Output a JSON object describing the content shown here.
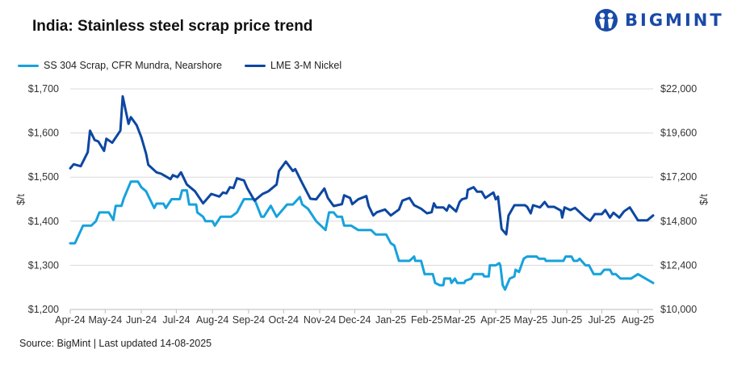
{
  "title": "India: Stainless steel scrap price trend",
  "logo": {
    "text": "BIGMINT",
    "color": "#1a4aa8"
  },
  "source": "Source: BigMint | Last updated 14-08-2025",
  "chart_data": {
    "type": "line",
    "title": "India: Stainless steel scrap price trend",
    "ylabel": "$/t",
    "y2label": "$/t",
    "ylim": [
      1200,
      1700
    ],
    "y2lim": [
      10000,
      22000
    ],
    "yticks": [
      "$1,200",
      "$1,300",
      "$1,400",
      "$1,500",
      "$1,600",
      "$1,700"
    ],
    "y2ticks": [
      "$10,000",
      "$12,400",
      "$14,800",
      "$17,200",
      "$19,600",
      "$22,000"
    ],
    "xticks": [
      "Apr-24",
      "May-24",
      "Jun-24",
      "Jul-24",
      "Aug-24",
      "Sep-24",
      "Oct-24",
      "Nov-24",
      "Dec-24",
      "Jan-25",
      "Feb-25",
      "Mar-25",
      "Apr-25",
      "May-25",
      "Jun-25",
      "Jul-25",
      "Aug-25"
    ],
    "xlim": [
      "2024-04-01",
      "2025-08-14"
    ],
    "grid": true,
    "legend_position": "top-left",
    "series": [
      {
        "name": "SS 304 Scrap, CFR Mundra, Nearshore",
        "axis": "left",
        "color": "#17a2dc",
        "points": [
          [
            "2024-04-01",
            1350
          ],
          [
            "2024-04-05",
            1350
          ],
          [
            "2024-04-12",
            1390
          ],
          [
            "2024-04-19",
            1390
          ],
          [
            "2024-04-23",
            1400
          ],
          [
            "2024-04-26",
            1420
          ],
          [
            "2024-05-04",
            1420
          ],
          [
            "2024-05-08",
            1403
          ],
          [
            "2024-05-10",
            1435
          ],
          [
            "2024-05-15",
            1435
          ],
          [
            "2024-05-17",
            1452
          ],
          [
            "2024-05-23",
            1490
          ],
          [
            "2024-05-29",
            1490
          ],
          [
            "2024-06-01",
            1477
          ],
          [
            "2024-06-05",
            1468
          ],
          [
            "2024-06-12",
            1430
          ],
          [
            "2024-06-14",
            1440
          ],
          [
            "2024-06-20",
            1440
          ],
          [
            "2024-06-22",
            1430
          ],
          [
            "2024-06-27",
            1450
          ],
          [
            "2024-07-04",
            1450
          ],
          [
            "2024-07-06",
            1470
          ],
          [
            "2024-07-10",
            1470
          ],
          [
            "2024-07-12",
            1438
          ],
          [
            "2024-07-18",
            1438
          ],
          [
            "2024-07-19",
            1420
          ],
          [
            "2024-07-24",
            1410
          ],
          [
            "2024-07-26",
            1400
          ],
          [
            "2024-08-01",
            1400
          ],
          [
            "2024-08-03",
            1390
          ],
          [
            "2024-08-08",
            1410
          ],
          [
            "2024-08-17",
            1410
          ],
          [
            "2024-08-22",
            1420
          ],
          [
            "2024-08-28",
            1450
          ],
          [
            "2024-09-06",
            1450
          ],
          [
            "2024-09-12",
            1410
          ],
          [
            "2024-09-14",
            1410
          ],
          [
            "2024-09-20",
            1435
          ],
          [
            "2024-09-25",
            1410
          ],
          [
            "2024-10-04",
            1438
          ],
          [
            "2024-10-09",
            1438
          ],
          [
            "2024-10-15",
            1455
          ],
          [
            "2024-10-17",
            1438
          ],
          [
            "2024-10-22",
            1428
          ],
          [
            "2024-10-29",
            1400
          ],
          [
            "2024-11-06",
            1380
          ],
          [
            "2024-11-09",
            1420
          ],
          [
            "2024-11-13",
            1420
          ],
          [
            "2024-11-16",
            1410
          ],
          [
            "2024-11-20",
            1410
          ],
          [
            "2024-11-22",
            1390
          ],
          [
            "2024-11-28",
            1390
          ],
          [
            "2024-12-04",
            1380
          ],
          [
            "2024-12-15",
            1380
          ],
          [
            "2024-12-19",
            1370
          ],
          [
            "2024-12-28",
            1370
          ],
          [
            "2025-01-01",
            1350
          ],
          [
            "2025-01-04",
            1345
          ],
          [
            "2025-01-08",
            1310
          ],
          [
            "2025-01-17",
            1310
          ],
          [
            "2025-01-21",
            1320
          ],
          [
            "2025-01-22",
            1310
          ],
          [
            "2025-01-27",
            1310
          ],
          [
            "2025-01-30",
            1280
          ],
          [
            "2025-02-06",
            1280
          ],
          [
            "2025-02-08",
            1260
          ],
          [
            "2025-02-12",
            1255
          ],
          [
            "2025-02-15",
            1255
          ],
          [
            "2025-02-16",
            1270
          ],
          [
            "2025-02-21",
            1270
          ],
          [
            "2025-02-22",
            1260
          ],
          [
            "2025-02-25",
            1270
          ],
          [
            "2025-02-27",
            1260
          ],
          [
            "2025-03-05",
            1260
          ],
          [
            "2025-03-06",
            1265
          ],
          [
            "2025-03-11",
            1270
          ],
          [
            "2025-03-13",
            1280
          ],
          [
            "2025-03-21",
            1280
          ],
          [
            "2025-03-22",
            1275
          ],
          [
            "2025-03-26",
            1275
          ],
          [
            "2025-03-27",
            1300
          ],
          [
            "2025-04-01",
            1300
          ],
          [
            "2025-04-04",
            1305
          ],
          [
            "2025-04-05",
            1300
          ],
          [
            "2025-04-07",
            1255
          ],
          [
            "2025-04-09",
            1245
          ],
          [
            "2025-04-13",
            1270
          ],
          [
            "2025-04-17",
            1275
          ],
          [
            "2025-04-18",
            1290
          ],
          [
            "2025-04-21",
            1285
          ],
          [
            "2025-04-25",
            1315
          ],
          [
            "2025-04-28",
            1320
          ],
          [
            "2025-05-06",
            1320
          ],
          [
            "2025-05-08",
            1315
          ],
          [
            "2025-05-13",
            1315
          ],
          [
            "2025-05-14",
            1310
          ],
          [
            "2025-05-29",
            1310
          ],
          [
            "2025-05-31",
            1320
          ],
          [
            "2025-06-05",
            1320
          ],
          [
            "2025-06-07",
            1310
          ],
          [
            "2025-06-10",
            1310
          ],
          [
            "2025-06-12",
            1315
          ],
          [
            "2025-06-17",
            1300
          ],
          [
            "2025-06-20",
            1300
          ],
          [
            "2025-06-24",
            1280
          ],
          [
            "2025-06-30",
            1280
          ],
          [
            "2025-07-03",
            1290
          ],
          [
            "2025-07-08",
            1290
          ],
          [
            "2025-07-10",
            1280
          ],
          [
            "2025-07-13",
            1280
          ],
          [
            "2025-07-17",
            1270
          ],
          [
            "2025-07-26",
            1270
          ],
          [
            "2025-08-01",
            1280
          ],
          [
            "2025-08-14",
            1260
          ]
        ]
      },
      {
        "name": "LME 3-M Nickel",
        "axis": "right",
        "color": "#0d47a1",
        "points": [
          [
            "2024-04-01",
            17680
          ],
          [
            "2024-04-04",
            17900
          ],
          [
            "2024-04-10",
            17795
          ],
          [
            "2024-04-16",
            18557
          ],
          [
            "2024-04-18",
            19729
          ],
          [
            "2024-04-22",
            19216
          ],
          [
            "2024-04-25",
            19143
          ],
          [
            "2024-04-30",
            18630
          ],
          [
            "2024-05-02",
            19290
          ],
          [
            "2024-05-07",
            19070
          ],
          [
            "2024-05-14",
            19729
          ],
          [
            "2024-05-16",
            21590
          ],
          [
            "2024-05-21",
            20095
          ],
          [
            "2024-05-23",
            20461
          ],
          [
            "2024-05-28",
            20022
          ],
          [
            "2024-06-01",
            19363
          ],
          [
            "2024-06-05",
            18483
          ],
          [
            "2024-06-07",
            17868
          ],
          [
            "2024-06-14",
            17458
          ],
          [
            "2024-06-18",
            17385
          ],
          [
            "2024-06-22",
            17238
          ],
          [
            "2024-06-26",
            17092
          ],
          [
            "2024-06-28",
            17311
          ],
          [
            "2024-07-02",
            17194
          ],
          [
            "2024-07-05",
            17458
          ],
          [
            "2024-07-10",
            16798
          ],
          [
            "2024-07-17",
            16432
          ],
          [
            "2024-07-24",
            15773
          ],
          [
            "2024-07-31",
            16286
          ],
          [
            "2024-08-07",
            16139
          ],
          [
            "2024-08-10",
            16359
          ],
          [
            "2024-08-13",
            16315
          ],
          [
            "2024-08-16",
            16652
          ],
          [
            "2024-08-19",
            16608
          ],
          [
            "2024-08-22",
            17136
          ],
          [
            "2024-08-28",
            17018
          ],
          [
            "2024-08-31",
            16579
          ],
          [
            "2024-09-06",
            15920
          ],
          [
            "2024-09-13",
            16286
          ],
          [
            "2024-09-18",
            16432
          ],
          [
            "2024-09-25",
            16798
          ],
          [
            "2024-09-27",
            17531
          ],
          [
            "2024-10-03",
            18044
          ],
          [
            "2024-10-09",
            17531
          ],
          [
            "2024-10-11",
            17634
          ],
          [
            "2024-10-17",
            16872
          ],
          [
            "2024-10-24",
            16022
          ],
          [
            "2024-10-29",
            15993
          ],
          [
            "2024-11-05",
            16579
          ],
          [
            "2024-11-08",
            16066
          ],
          [
            "2024-11-13",
            15626
          ],
          [
            "2024-11-20",
            15729
          ],
          [
            "2024-11-22",
            16212
          ],
          [
            "2024-11-27",
            16066
          ],
          [
            "2024-11-29",
            15729
          ],
          [
            "2024-12-04",
            15993
          ],
          [
            "2024-12-11",
            16169
          ],
          [
            "2024-12-13",
            15626
          ],
          [
            "2024-12-17",
            15113
          ],
          [
            "2024-12-20",
            15289
          ],
          [
            "2024-12-27",
            15436
          ],
          [
            "2025-01-01",
            15113
          ],
          [
            "2025-01-08",
            15436
          ],
          [
            "2025-01-11",
            15920
          ],
          [
            "2025-01-17",
            16066
          ],
          [
            "2025-01-21",
            15670
          ],
          [
            "2025-01-27",
            15480
          ],
          [
            "2025-02-01",
            15231
          ],
          [
            "2025-02-05",
            15289
          ],
          [
            "2025-02-07",
            15773
          ],
          [
            "2025-02-09",
            15553
          ],
          [
            "2025-02-15",
            15553
          ],
          [
            "2025-02-18",
            15377
          ],
          [
            "2025-02-20",
            15670
          ],
          [
            "2025-02-26",
            15333
          ],
          [
            "2025-03-01",
            15846
          ],
          [
            "2025-03-03",
            15993
          ],
          [
            "2025-03-07",
            16066
          ],
          [
            "2025-03-08",
            16505
          ],
          [
            "2025-03-13",
            16652
          ],
          [
            "2025-03-16",
            16403
          ],
          [
            "2025-03-20",
            16403
          ],
          [
            "2025-03-23",
            16066
          ],
          [
            "2025-03-30",
            16359
          ],
          [
            "2025-04-01",
            15993
          ],
          [
            "2025-04-03",
            16139
          ],
          [
            "2025-04-06",
            14381
          ],
          [
            "2025-04-10",
            14088
          ],
          [
            "2025-04-12",
            15113
          ],
          [
            "2025-04-17",
            15670
          ],
          [
            "2025-04-26",
            15670
          ],
          [
            "2025-04-28",
            15582
          ],
          [
            "2025-05-01",
            15231
          ],
          [
            "2025-05-03",
            15670
          ],
          [
            "2025-05-09",
            15553
          ],
          [
            "2025-05-13",
            15846
          ],
          [
            "2025-05-16",
            15582
          ],
          [
            "2025-05-21",
            15582
          ],
          [
            "2025-05-27",
            15377
          ],
          [
            "2025-05-28",
            14997
          ],
          [
            "2025-05-30",
            15553
          ],
          [
            "2025-06-04",
            15407
          ],
          [
            "2025-06-08",
            15524
          ],
          [
            "2025-06-13",
            15231
          ],
          [
            "2025-06-17",
            14997
          ],
          [
            "2025-06-21",
            14820
          ],
          [
            "2025-06-25",
            15187
          ],
          [
            "2025-07-01",
            15187
          ],
          [
            "2025-07-04",
            15407
          ],
          [
            "2025-07-08",
            14997
          ],
          [
            "2025-07-11",
            15260
          ],
          [
            "2025-07-16",
            14997
          ],
          [
            "2025-07-20",
            15333
          ],
          [
            "2025-07-25",
            15553
          ],
          [
            "2025-08-01",
            14850
          ],
          [
            "2025-08-09",
            14850
          ],
          [
            "2025-08-14",
            15113
          ]
        ]
      }
    ]
  }
}
